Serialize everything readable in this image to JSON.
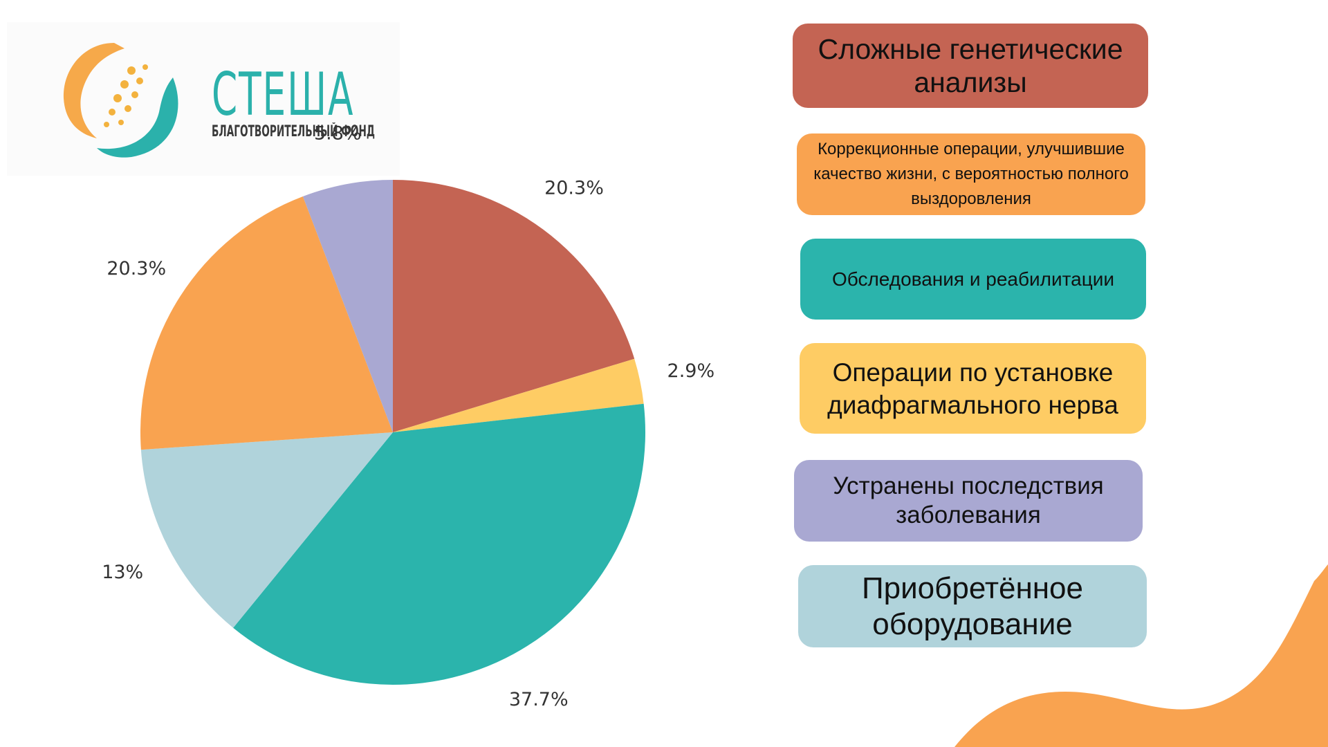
{
  "logo": {
    "name": "СТЕША",
    "subtitle": "БЛАГОТВОРИТЕЛЬНЫЙ ФОНД"
  },
  "colors": {
    "genetic": "#c46453",
    "corrective": "#f9a350",
    "rehab": "#2bb4ac",
    "diaphragm": "#fecc64",
    "consequences": "#a9a8d2",
    "equipment": "#b0d3db"
  },
  "chart_data": {
    "type": "pie",
    "slices": [
      {
        "key": "genetic",
        "label": "Сложные генетические анализы",
        "value": 20.3,
        "display": "20.3%",
        "color": "#c46453"
      },
      {
        "key": "diaphragm",
        "label": "Операции по установке диафрагмального нерва",
        "value": 2.9,
        "display": "2.9%",
        "color": "#fecc64"
      },
      {
        "key": "rehab",
        "label": "Обследования и реабилитации",
        "value": 37.7,
        "display": "37.7%",
        "color": "#2bb4ac"
      },
      {
        "key": "equipment",
        "label": "Приобретённое оборудование",
        "value": 13,
        "display": "13%",
        "color": "#b0d3db"
      },
      {
        "key": "corrective",
        "label": "Коррекционные операции, улучшившие качество жизни, с вероятностью полного выздоровления",
        "value": 20.3,
        "display": "20.3%",
        "color": "#f9a350"
      },
      {
        "key": "consequences",
        "label": "Устранены последствия заболевания",
        "value": 5.8,
        "display": "5.8%",
        "color": "#a9a8d2"
      }
    ],
    "legend_placement": "right"
  },
  "legend": {
    "genetic": "Сложные генетические анализы",
    "corrective": "Коррекционные операции, улучшившие качество жизни, с вероятностью полного выздоровления",
    "rehab": "Обследования и реабилитации",
    "diaphragm": "Операции по установке диафрагмального нерва",
    "consequences": "Устранены последствия заболевания",
    "equipment": "Приобретённое оборудование"
  }
}
